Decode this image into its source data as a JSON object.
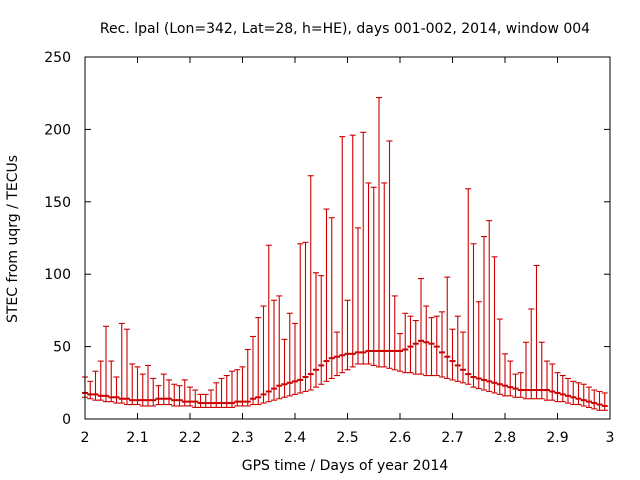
{
  "chart_data": {
    "type": "scatter",
    "title": "Rec. lpal (Lon=342, Lat=28, h=HE), days 001-002, 2014, window 004",
    "xlabel": "GPS time / Days of year 2014",
    "ylabel": "STEC from uqrg / TECUs",
    "xlim": [
      2,
      3
    ],
    "ylim": [
      0,
      250
    ],
    "xticks": [
      2,
      2.1,
      2.2,
      2.3,
      2.4,
      2.5,
      2.6,
      2.7,
      2.8,
      2.9,
      3
    ],
    "xtick_labels": [
      "2",
      "2.1",
      "2.2",
      "2.3",
      "2.4",
      "2.5",
      "2.6",
      "2.7",
      "2.8",
      "2.9",
      "3"
    ],
    "yticks": [
      0,
      50,
      100,
      150,
      200,
      250
    ],
    "ytick_labels": [
      "0",
      "50",
      "100",
      "150",
      "200",
      "250"
    ],
    "grid": false,
    "series_color": "#cc0000",
    "series": [
      {
        "name": "STEC error bars",
        "x": [
          2.0,
          2.01,
          2.02,
          2.03,
          2.04,
          2.05,
          2.06,
          2.07,
          2.08,
          2.09,
          2.1,
          2.11,
          2.12,
          2.13,
          2.14,
          2.15,
          2.16,
          2.17,
          2.18,
          2.19,
          2.2,
          2.21,
          2.22,
          2.23,
          2.24,
          2.25,
          2.26,
          2.27,
          2.28,
          2.29,
          2.3,
          2.31,
          2.32,
          2.33,
          2.34,
          2.35,
          2.36,
          2.37,
          2.38,
          2.39,
          2.4,
          2.41,
          2.42,
          2.43,
          2.44,
          2.45,
          2.46,
          2.47,
          2.48,
          2.49,
          2.5,
          2.51,
          2.52,
          2.53,
          2.54,
          2.55,
          2.56,
          2.57,
          2.58,
          2.59,
          2.6,
          2.61,
          2.62,
          2.63,
          2.64,
          2.65,
          2.66,
          2.67,
          2.68,
          2.69,
          2.7,
          2.71,
          2.72,
          2.73,
          2.74,
          2.75,
          2.76,
          2.77,
          2.78,
          2.79,
          2.8,
          2.81,
          2.82,
          2.83,
          2.84,
          2.85,
          2.86,
          2.87,
          2.88,
          2.89,
          2.9,
          2.91,
          2.92,
          2.93,
          2.94,
          2.95,
          2.96,
          2.97,
          2.98,
          2.99
        ],
        "low": [
          15,
          14,
          13,
          13,
          12,
          12,
          11,
          11,
          10,
          10,
          10,
          9,
          9,
          9,
          10,
          10,
          10,
          9,
          9,
          9,
          9,
          8,
          8,
          8,
          8,
          8,
          8,
          8,
          8,
          9,
          9,
          9,
          10,
          10,
          11,
          12,
          13,
          14,
          15,
          16,
          17,
          18,
          19,
          20,
          22,
          24,
          26,
          28,
          30,
          32,
          34,
          36,
          38,
          38,
          38,
          37,
          36,
          36,
          35,
          34,
          33,
          32,
          32,
          31,
          31,
          30,
          30,
          30,
          29,
          28,
          27,
          26,
          25,
          24,
          22,
          21,
          20,
          19,
          18,
          17,
          16,
          16,
          15,
          15,
          14,
          14,
          14,
          14,
          13,
          13,
          12,
          12,
          11,
          10,
          10,
          9,
          8,
          7,
          6,
          6
        ],
        "mid": [
          18,
          17,
          17,
          16,
          16,
          15,
          15,
          14,
          14,
          13,
          13,
          13,
          13,
          13,
          14,
          14,
          14,
          13,
          13,
          12,
          12,
          12,
          11,
          11,
          11,
          11,
          11,
          11,
          11,
          12,
          12,
          12,
          14,
          15,
          17,
          19,
          21,
          23,
          24,
          25,
          26,
          27,
          29,
          31,
          34,
          37,
          40,
          42,
          43,
          44,
          45,
          45,
          46,
          46,
          47,
          47,
          47,
          47,
          47,
          47,
          47,
          48,
          50,
          52,
          54,
          53,
          52,
          50,
          46,
          43,
          40,
          37,
          34,
          31,
          29,
          28,
          27,
          26,
          25,
          24,
          23,
          22,
          21,
          20,
          20,
          20,
          20,
          20,
          20,
          19,
          18,
          17,
          16,
          15,
          14,
          13,
          12,
          11,
          10,
          9
        ],
        "high": [
          29,
          26,
          33,
          40,
          64,
          40,
          29,
          66,
          62,
          38,
          36,
          31,
          37,
          28,
          23,
          31,
          27,
          24,
          23,
          27,
          22,
          20,
          17,
          17,
          20,
          25,
          28,
          30,
          33,
          34,
          36,
          48,
          57,
          70,
          78,
          120,
          82,
          85,
          55,
          73,
          66,
          121,
          122,
          168,
          101,
          99,
          145,
          139,
          60,
          195,
          82,
          196,
          132,
          198,
          163,
          160,
          222,
          163,
          192,
          85,
          59,
          73,
          71,
          68,
          97,
          78,
          70,
          71,
          74,
          98,
          62,
          71,
          60,
          159,
          121,
          81,
          126,
          137,
          112,
          69,
          45,
          40,
          31,
          32,
          53,
          76,
          106,
          53,
          40,
          38,
          32,
          30,
          28,
          26,
          25,
          24,
          22,
          20,
          19,
          18
        ]
      }
    ]
  }
}
